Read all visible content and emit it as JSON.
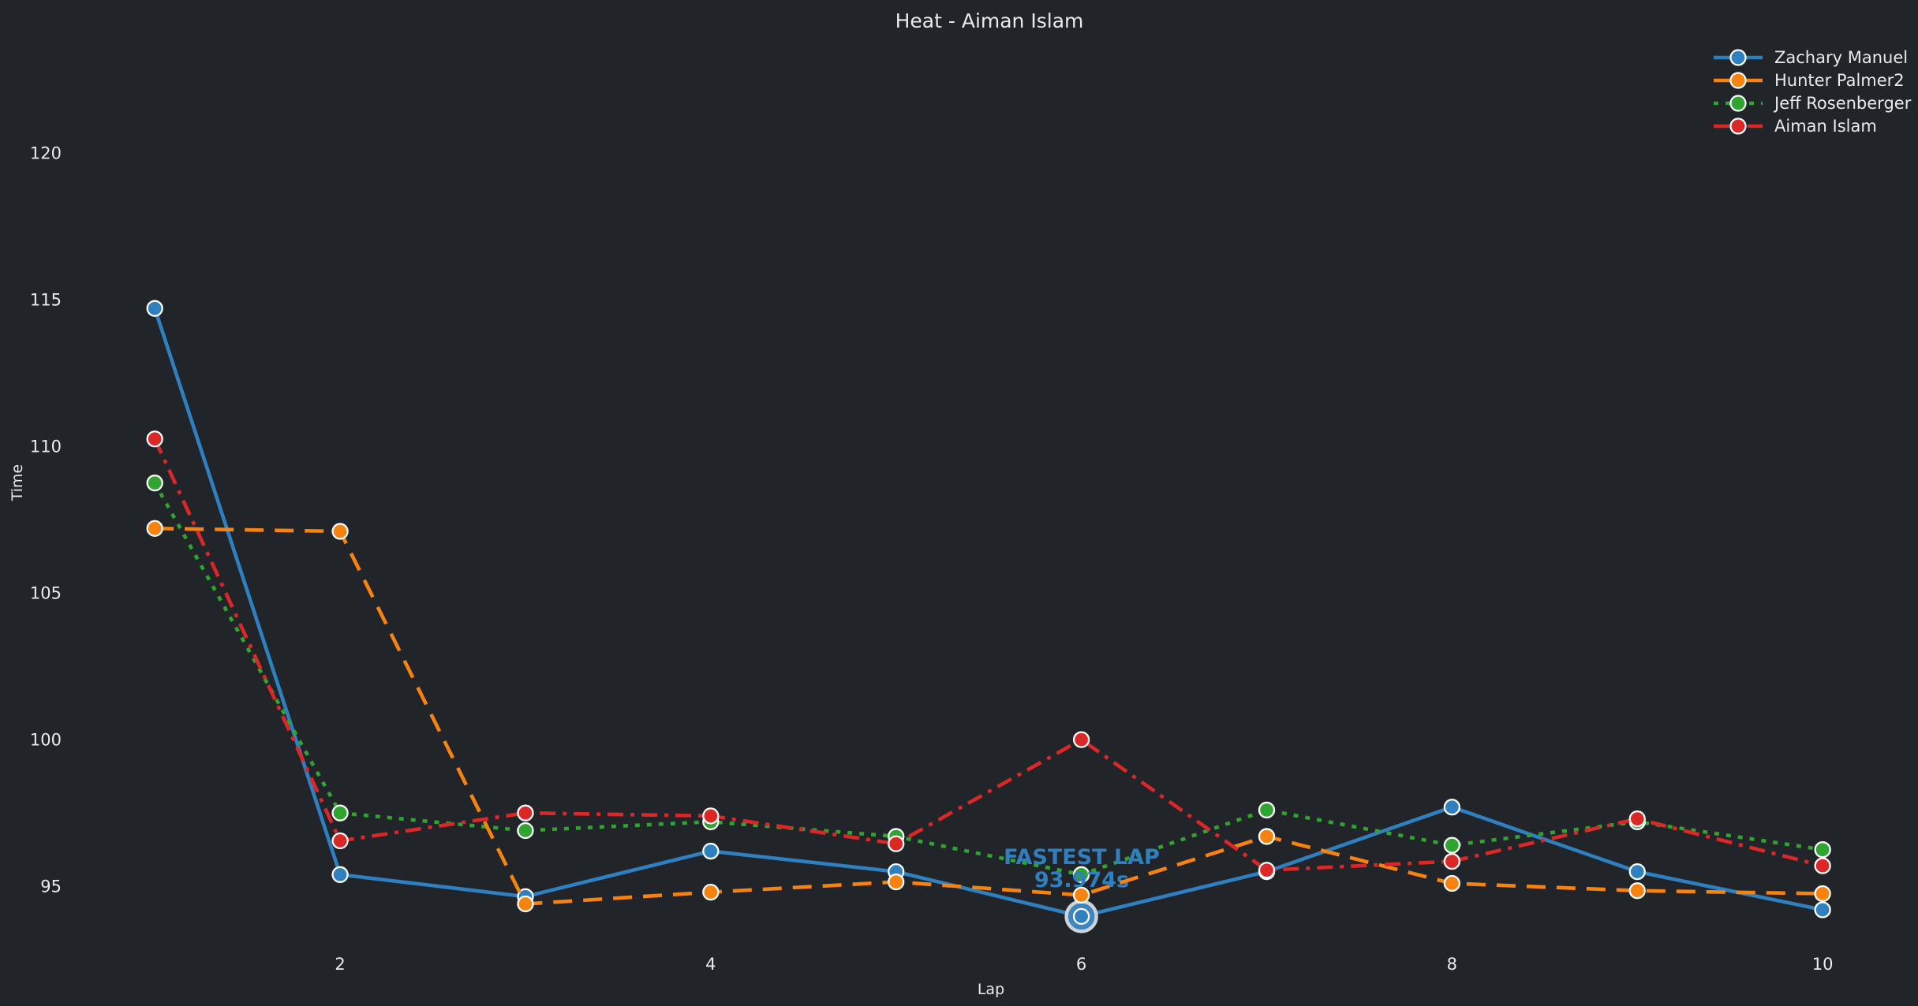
{
  "colors": {
    "background": "#212529",
    "text": "#e8eaed",
    "blue": "#2f80c0",
    "orange": "#f8820e",
    "green": "#2fa42f",
    "red": "#dc2727"
  },
  "chart_data": {
    "type": "line",
    "title": "Heat - Aiman Islam",
    "xlabel": "Lap",
    "ylabel": "Time",
    "x": [
      1,
      2,
      3,
      4,
      5,
      6,
      7,
      8,
      9,
      10
    ],
    "x_ticks": [
      2,
      4,
      6,
      8,
      10
    ],
    "y_ticks": [
      95,
      100,
      105,
      110,
      115,
      120
    ],
    "xlim": [
      0.55,
      10.45
    ],
    "ylim": [
      93.0,
      123.5
    ],
    "grid": false,
    "legend_position": "upper right",
    "series": [
      {
        "name": "Zachary Manuel",
        "color": "#2f80c0",
        "style": "solid",
        "values": [
          114.7,
          95.4,
          94.65,
          96.2,
          95.5,
          93.974,
          95.5,
          97.7,
          95.5,
          94.2
        ]
      },
      {
        "name": "Hunter Palmer2",
        "color": "#f8820e",
        "style": "dashed",
        "values": [
          107.2,
          107.1,
          94.4,
          94.8,
          95.15,
          94.7,
          96.7,
          95.1,
          94.85,
          94.75
        ]
      },
      {
        "name": "Jeff Rosenberger",
        "color": "#2fa42f",
        "style": "dotted",
        "values": [
          108.75,
          97.5,
          96.9,
          97.2,
          96.7,
          95.4,
          97.6,
          96.4,
          97.2,
          96.25
        ]
      },
      {
        "name": "Aiman Islam",
        "color": "#dc2727",
        "style": "dashdot",
        "values": [
          110.25,
          96.55,
          97.5,
          97.4,
          96.45,
          100.0,
          95.55,
          95.85,
          97.3,
          95.7
        ]
      }
    ],
    "annotation": {
      "line1": "FASTEST LAP",
      "line2": "93.974s",
      "x": 6,
      "y": 93.974,
      "series": "Zachary Manuel"
    }
  }
}
